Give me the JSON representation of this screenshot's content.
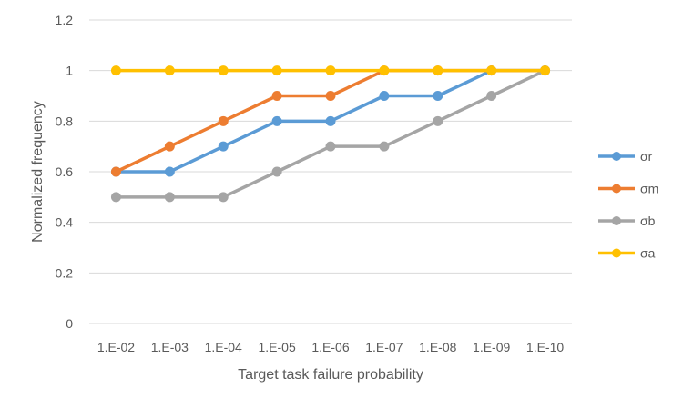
{
  "chart_data": {
    "type": "line",
    "title": "",
    "xlabel": "Target task failure probability",
    "ylabel": "Normalized frequency",
    "categories": [
      "1.E-02",
      "1.E-03",
      "1.E-04",
      "1.E-05",
      "1.E-06",
      "1.E-07",
      "1.E-08",
      "1.E-09",
      "1.E-10"
    ],
    "ylim": [
      0,
      1.2
    ],
    "yticks": [
      0,
      0.2,
      0.4,
      0.6,
      0.8,
      1,
      1.2
    ],
    "ytick_labels": [
      "0",
      "0.2",
      "0.4",
      "0.6",
      "0.8",
      "1",
      "1.2"
    ],
    "grid": "horizontal",
    "legend_position": "right",
    "series": [
      {
        "name": "σr",
        "color": "#5B9BD5",
        "values": [
          0.6,
          0.6,
          0.7,
          0.8,
          0.8,
          0.9,
          0.9,
          1.0,
          1.0
        ]
      },
      {
        "name": "σm",
        "color": "#ED7D31",
        "values": [
          0.6,
          0.7,
          0.8,
          0.9,
          0.9,
          1.0,
          1.0,
          1.0,
          1.0
        ]
      },
      {
        "name": "σb",
        "color": "#A5A5A5",
        "values": [
          0.5,
          0.5,
          0.5,
          0.6,
          0.7,
          0.7,
          0.8,
          0.9,
          1.0
        ]
      },
      {
        "name": "σa",
        "color": "#FFC000",
        "values": [
          1.0,
          1.0,
          1.0,
          1.0,
          1.0,
          1.0,
          1.0,
          1.0,
          1.0
        ]
      }
    ]
  }
}
